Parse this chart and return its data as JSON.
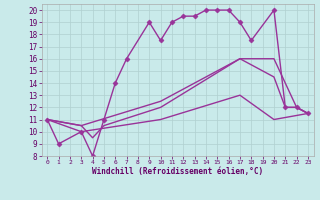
{
  "title": "",
  "xlabel": "Windchill (Refroidissement éolien,°C)",
  "ylabel": "",
  "xlim": [
    -0.5,
    23.5
  ],
  "ylim": [
    8,
    20.5
  ],
  "xticks": [
    0,
    1,
    2,
    3,
    4,
    5,
    6,
    7,
    8,
    9,
    10,
    11,
    12,
    13,
    14,
    15,
    16,
    17,
    18,
    19,
    20,
    21,
    22,
    23
  ],
  "yticks": [
    8,
    9,
    10,
    11,
    12,
    13,
    14,
    15,
    16,
    17,
    18,
    19,
    20
  ],
  "bg_color": "#c9eaea",
  "line_color": "#993399",
  "grid_color": "#b0d0d0",
  "series": [
    {
      "x": [
        0,
        1,
        3,
        4,
        5,
        6,
        7,
        9,
        10,
        11,
        12,
        13,
        14,
        15,
        16,
        17,
        18,
        20,
        21,
        22,
        23
      ],
      "y": [
        11,
        9,
        10,
        8,
        11,
        14,
        16,
        19,
        17.5,
        19,
        19.5,
        19.5,
        20,
        20,
        20,
        19,
        17.5,
        20,
        12,
        12,
        11.5
      ],
      "marker": "D",
      "markersize": 2.5,
      "lw": 1.0
    },
    {
      "x": [
        0,
        3,
        4,
        5,
        10,
        17,
        20,
        21,
        22,
        23
      ],
      "y": [
        11,
        10.5,
        9.5,
        10.5,
        12,
        16,
        14.5,
        12,
        12,
        11.5
      ],
      "marker": null,
      "markersize": 0,
      "lw": 1.0
    },
    {
      "x": [
        0,
        3,
        10,
        17,
        20,
        22,
        23
      ],
      "y": [
        11,
        10.5,
        12.5,
        16,
        16,
        12,
        11.5
      ],
      "marker": null,
      "markersize": 0,
      "lw": 1.0
    },
    {
      "x": [
        0,
        3,
        10,
        17,
        20,
        23
      ],
      "y": [
        11,
        10,
        11,
        13,
        11,
        11.5
      ],
      "marker": null,
      "markersize": 0,
      "lw": 1.0
    }
  ]
}
